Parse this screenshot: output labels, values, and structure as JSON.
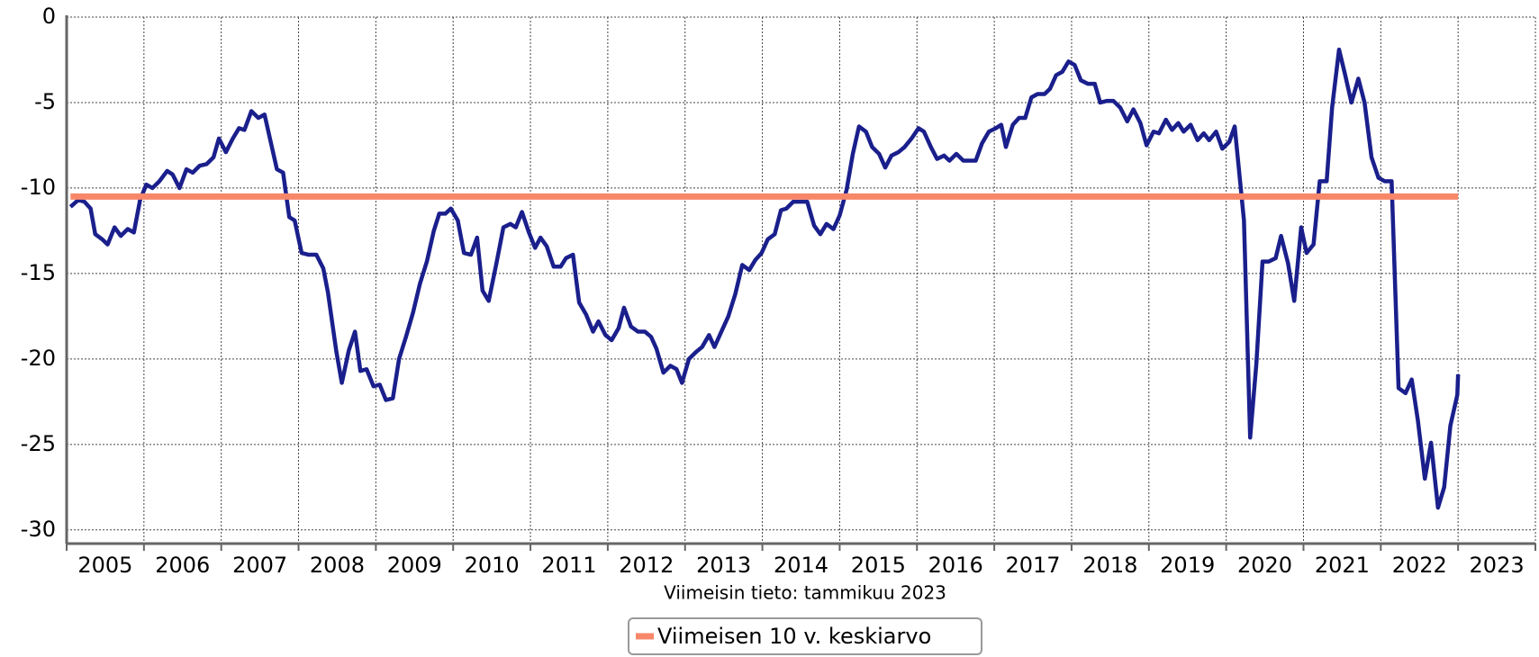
{
  "chart_data": {
    "type": "line",
    "subtitle": "Viimeisin tieto: tammikuu 2023",
    "xlim": [
      2005,
      2024
    ],
    "xticks": [
      2005,
      2006,
      2007,
      2008,
      2009,
      2010,
      2011,
      2012,
      2013,
      2014,
      2015,
      2016,
      2017,
      2018,
      2019,
      2020,
      2021,
      2022,
      2023,
      2024
    ],
    "xtick_labels": [
      "2005",
      "2006",
      "2007",
      "2008",
      "2009",
      "2010",
      "2011",
      "2012",
      "2013",
      "2014",
      "2015",
      "2016",
      "2017",
      "2018",
      "2019",
      "2020",
      "2021",
      "2022",
      "2023"
    ],
    "ylim": [
      -30.8,
      0
    ],
    "yticks": [
      0,
      -5,
      -10,
      -15,
      -20,
      -25,
      -30
    ],
    "grid": true,
    "legend": "bottom",
    "series": [
      {
        "color": "#1a1f8c",
        "legend": false,
        "x": [
          2005.05,
          2005.15,
          2005.23,
          2005.31,
          2005.37,
          2005.46,
          2005.53,
          2005.62,
          2005.7,
          2005.79,
          2005.87,
          2005.95,
          2006.03,
          2006.11,
          2006.2,
          2006.3,
          2006.37,
          2006.46,
          2006.55,
          2006.63,
          2006.72,
          2006.81,
          2006.9,
          2006.97,
          2007.06,
          2007.15,
          2007.23,
          2007.3,
          2007.39,
          2007.48,
          2007.56,
          2007.65,
          2007.72,
          2007.8,
          2007.88,
          2007.95,
          2008.04,
          2008.13,
          2008.23,
          2008.32,
          2008.38,
          2008.49,
          2008.56,
          2008.65,
          2008.73,
          2008.8,
          2008.88,
          2008.97,
          2009.05,
          2009.13,
          2009.22,
          2009.3,
          2009.39,
          2009.48,
          2009.57,
          2009.66,
          2009.75,
          2009.82,
          2009.9,
          2009.97,
          2010.06,
          2010.14,
          2010.23,
          2010.31,
          2010.38,
          2010.46,
          2010.56,
          2010.65,
          2010.74,
          2010.81,
          2010.89,
          2010.98,
          2011.06,
          2011.13,
          2011.21,
          2011.3,
          2011.39,
          2011.46,
          2011.55,
          2011.63,
          2011.72,
          2011.81,
          2011.88,
          2011.97,
          2012.05,
          2012.14,
          2012.21,
          2012.3,
          2012.39,
          2012.48,
          2012.56,
          2012.63,
          2012.72,
          2012.81,
          2012.89,
          2012.96,
          2013.05,
          2013.14,
          2013.22,
          2013.31,
          2013.38,
          2013.47,
          2013.56,
          2013.65,
          2013.74,
          2013.83,
          2013.91,
          2013.99,
          2014.07,
          2014.16,
          2014.24,
          2014.31,
          2014.4,
          2014.49,
          2014.58,
          2014.67,
          2014.75,
          2014.83,
          2014.92,
          2015.0,
          2015.09,
          2015.17,
          2015.25,
          2015.34,
          2015.42,
          2015.51,
          2015.59,
          2015.67,
          2015.76,
          2015.84,
          2015.93,
          2016.02,
          2016.09,
          2016.18,
          2016.26,
          2016.35,
          2016.42,
          2016.51,
          2016.6,
          2016.68,
          2016.76,
          2016.84,
          2016.93,
          2017.02,
          2017.09,
          2017.15,
          2017.24,
          2017.32,
          2017.4,
          2017.48,
          2017.56,
          2017.65,
          2017.72,
          2017.8,
          2017.88,
          2017.96,
          2018.04,
          2018.12,
          2018.21,
          2018.3,
          2018.37,
          2018.46,
          2018.54,
          2018.63,
          2018.72,
          2018.8,
          2018.89,
          2018.97,
          2019.06,
          2019.13,
          2019.22,
          2019.3,
          2019.38,
          2019.45,
          2019.54,
          2019.63,
          2019.71,
          2019.78,
          2019.87,
          2019.95,
          2020.04,
          2020.11,
          2020.23,
          2020.31,
          2020.39,
          2020.47,
          2020.55,
          2020.64,
          2020.71,
          2020.8,
          2020.88,
          2020.97,
          2021.04,
          2021.13,
          2021.21,
          2021.3,
          2021.37,
          2021.46,
          2021.54,
          2021.62,
          2021.71,
          2021.79,
          2021.88,
          2021.97,
          2022.05,
          2022.14,
          2022.23,
          2022.32,
          2022.4,
          2022.48,
          2022.57,
          2022.65,
          2022.74,
          2022.82,
          2022.9,
          2022.99,
          2023.0
        ],
        "values": [
          -11.1,
          -10.7,
          -10.8,
          -11.2,
          -12.7,
          -13.0,
          -13.3,
          -12.3,
          -12.8,
          -12.4,
          -12.6,
          -10.7,
          -9.8,
          -10.0,
          -9.6,
          -9.0,
          -9.2,
          -10.0,
          -8.9,
          -9.1,
          -8.7,
          -8.6,
          -8.2,
          -7.1,
          -7.9,
          -7.1,
          -6.5,
          -6.6,
          -5.5,
          -5.9,
          -5.7,
          -7.5,
          -8.9,
          -9.1,
          -11.7,
          -11.9,
          -13.8,
          -13.9,
          -13.9,
          -14.7,
          -16.1,
          -19.6,
          -21.4,
          -19.5,
          -18.4,
          -20.7,
          -20.6,
          -21.6,
          -21.5,
          -22.4,
          -22.3,
          -20.0,
          -18.7,
          -17.3,
          -15.6,
          -14.3,
          -12.5,
          -11.5,
          -11.5,
          -11.2,
          -11.9,
          -13.8,
          -13.9,
          -12.9,
          -16.0,
          -16.6,
          -14.4,
          -12.3,
          -12.1,
          -12.3,
          -11.4,
          -12.6,
          -13.5,
          -12.9,
          -13.4,
          -14.6,
          -14.6,
          -14.1,
          -13.9,
          -16.7,
          -17.4,
          -18.4,
          -17.8,
          -18.6,
          -18.9,
          -18.2,
          -17.0,
          -18.1,
          -18.4,
          -18.4,
          -18.7,
          -19.4,
          -20.8,
          -20.4,
          -20.6,
          -21.4,
          -20.0,
          -19.6,
          -19.3,
          -18.6,
          -19.3,
          -18.4,
          -17.5,
          -16.2,
          -14.5,
          -14.8,
          -14.2,
          -13.8,
          -13.0,
          -12.7,
          -11.3,
          -11.2,
          -10.8,
          -10.8,
          -10.8,
          -12.2,
          -12.7,
          -12.1,
          -12.4,
          -11.6,
          -10.1,
          -8.0,
          -6.4,
          -6.7,
          -7.6,
          -8.0,
          -8.8,
          -8.1,
          -7.9,
          -7.6,
          -7.1,
          -6.5,
          -6.7,
          -7.6,
          -8.3,
          -8.1,
          -8.4,
          -8.0,
          -8.4,
          -8.4,
          -8.4,
          -7.4,
          -6.7,
          -6.5,
          -6.3,
          -7.6,
          -6.3,
          -5.9,
          -5.9,
          -4.7,
          -4.5,
          -4.5,
          -4.2,
          -3.4,
          -3.2,
          -2.6,
          -2.8,
          -3.7,
          -3.9,
          -3.9,
          -5.0,
          -4.9,
          -4.9,
          -5.3,
          -6.1,
          -5.4,
          -6.2,
          -7.5,
          -6.7,
          -6.8,
          -6.0,
          -6.6,
          -6.2,
          -6.7,
          -6.3,
          -7.2,
          -6.8,
          -7.2,
          -6.7,
          -7.7,
          -7.3,
          -6.4,
          -11.9,
          -24.6,
          -20.3,
          -14.3,
          -14.3,
          -14.1,
          -12.8,
          -14.4,
          -16.6,
          -12.3,
          -13.8,
          -13.3,
          -9.6,
          -9.6,
          -5.3,
          -1.9,
          -3.4,
          -5.0,
          -3.6,
          -5.0,
          -8.2,
          -9.4,
          -9.6,
          -9.6,
          -21.7,
          -22.0,
          -21.2,
          -23.6,
          -27.0,
          -24.9,
          -28.7,
          -27.5,
          -23.9,
          -22.1,
          -20.9
        ]
      },
      {
        "name": "Viimeisen 10 v. keskiarvo",
        "color": "#f8876a",
        "legend": true,
        "x": [
          2005.05,
          2023.0
        ],
        "values": [
          -10.5,
          -10.5
        ]
      }
    ]
  }
}
